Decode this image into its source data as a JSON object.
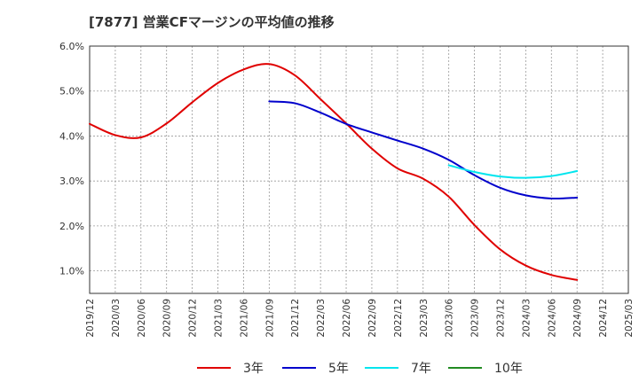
{
  "title": "[7877]  営業CFマージンの平均値の推移",
  "chart_data": {
    "type": "line",
    "title": "[7877]  営業CFマージンの平均値の推移",
    "xlabel": "",
    "ylabel": "",
    "ylim": [
      0.5,
      6.0
    ],
    "y_ticks": [
      "1.0%",
      "2.0%",
      "3.0%",
      "4.0%",
      "5.0%",
      "6.0%"
    ],
    "y_tick_values": [
      1.0,
      2.0,
      3.0,
      4.0,
      5.0,
      6.0
    ],
    "x_ticks": [
      "2019/12",
      "2020/03",
      "2020/06",
      "2020/09",
      "2020/12",
      "2021/03",
      "2021/06",
      "2021/09",
      "2021/12",
      "2022/03",
      "2022/06",
      "2022/09",
      "2022/12",
      "2023/03",
      "2023/06",
      "2023/09",
      "2023/12",
      "2024/03",
      "2024/06",
      "2024/09",
      "2024/12",
      "2025/03"
    ],
    "grid": true,
    "legend_position": "bottom",
    "series": [
      {
        "name": "3年",
        "color": "#e00000",
        "x": [
          "2019/12",
          "2020/03",
          "2020/06",
          "2020/09",
          "2020/12",
          "2021/03",
          "2021/06",
          "2021/09",
          "2021/12",
          "2022/03",
          "2022/06",
          "2022/09",
          "2022/12",
          "2023/03",
          "2023/06",
          "2023/09",
          "2023/12",
          "2024/03",
          "2024/06",
          "2024/09"
        ],
        "values": [
          4.27,
          4.02,
          3.97,
          4.28,
          4.75,
          5.18,
          5.48,
          5.6,
          5.35,
          4.82,
          4.28,
          3.72,
          3.28,
          3.05,
          2.65,
          2.02,
          1.48,
          1.12,
          0.91,
          0.8
        ]
      },
      {
        "name": "5年",
        "color": "#0000cc",
        "x": [
          "2021/09",
          "2021/12",
          "2022/03",
          "2022/06",
          "2022/09",
          "2022/12",
          "2023/03",
          "2023/06",
          "2023/09",
          "2023/12",
          "2024/03",
          "2024/06",
          "2024/09"
        ],
        "values": [
          4.77,
          4.73,
          4.52,
          4.27,
          4.08,
          3.9,
          3.72,
          3.47,
          3.13,
          2.85,
          2.68,
          2.61,
          2.63
        ]
      },
      {
        "name": "7年",
        "color": "#00e5ee",
        "x": [
          "2023/06",
          "2023/09",
          "2023/12",
          "2024/03",
          "2024/06",
          "2024/09"
        ],
        "values": [
          3.35,
          3.2,
          3.1,
          3.07,
          3.11,
          3.22
        ]
      },
      {
        "name": "10年",
        "color": "#228b22",
        "x": [],
        "values": []
      }
    ]
  }
}
